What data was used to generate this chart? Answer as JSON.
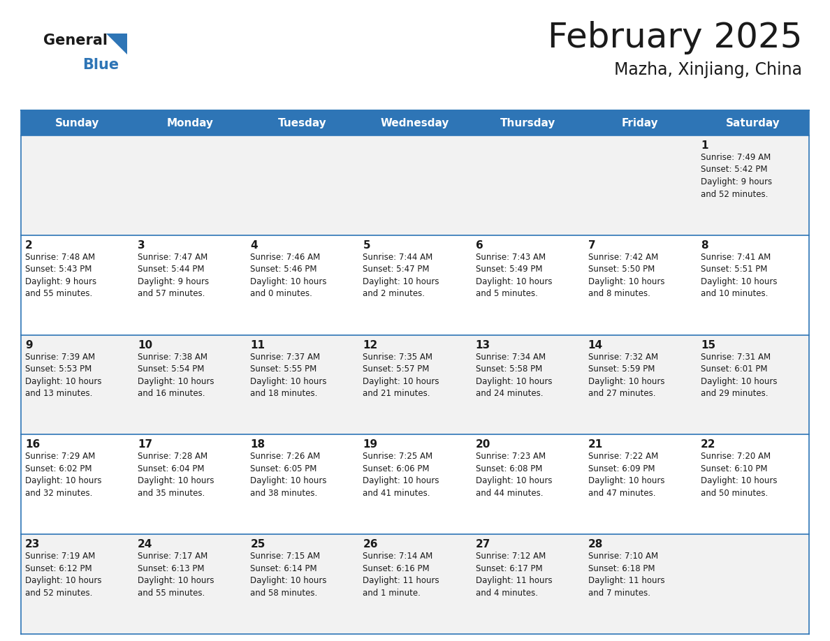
{
  "title": "February 2025",
  "subtitle": "Mazha, Xinjiang, China",
  "header_color": "#2E75B6",
  "header_text_color": "#FFFFFF",
  "bg_color_odd": "#F2F2F2",
  "bg_color_even": "#FFFFFF",
  "bg_color_white": "#FFFFFF",
  "border_color": "#2E75B6",
  "text_color": "#1a1a1a",
  "day_headers": [
    "Sunday",
    "Monday",
    "Tuesday",
    "Wednesday",
    "Thursday",
    "Friday",
    "Saturday"
  ],
  "weeks": [
    [
      {
        "day": "",
        "info": ""
      },
      {
        "day": "",
        "info": ""
      },
      {
        "day": "",
        "info": ""
      },
      {
        "day": "",
        "info": ""
      },
      {
        "day": "",
        "info": ""
      },
      {
        "day": "",
        "info": ""
      },
      {
        "day": "1",
        "info": "Sunrise: 7:49 AM\nSunset: 5:42 PM\nDaylight: 9 hours\nand 52 minutes."
      }
    ],
    [
      {
        "day": "2",
        "info": "Sunrise: 7:48 AM\nSunset: 5:43 PM\nDaylight: 9 hours\nand 55 minutes."
      },
      {
        "day": "3",
        "info": "Sunrise: 7:47 AM\nSunset: 5:44 PM\nDaylight: 9 hours\nand 57 minutes."
      },
      {
        "day": "4",
        "info": "Sunrise: 7:46 AM\nSunset: 5:46 PM\nDaylight: 10 hours\nand 0 minutes."
      },
      {
        "day": "5",
        "info": "Sunrise: 7:44 AM\nSunset: 5:47 PM\nDaylight: 10 hours\nand 2 minutes."
      },
      {
        "day": "6",
        "info": "Sunrise: 7:43 AM\nSunset: 5:49 PM\nDaylight: 10 hours\nand 5 minutes."
      },
      {
        "day": "7",
        "info": "Sunrise: 7:42 AM\nSunset: 5:50 PM\nDaylight: 10 hours\nand 8 minutes."
      },
      {
        "day": "8",
        "info": "Sunrise: 7:41 AM\nSunset: 5:51 PM\nDaylight: 10 hours\nand 10 minutes."
      }
    ],
    [
      {
        "day": "9",
        "info": "Sunrise: 7:39 AM\nSunset: 5:53 PM\nDaylight: 10 hours\nand 13 minutes."
      },
      {
        "day": "10",
        "info": "Sunrise: 7:38 AM\nSunset: 5:54 PM\nDaylight: 10 hours\nand 16 minutes."
      },
      {
        "day": "11",
        "info": "Sunrise: 7:37 AM\nSunset: 5:55 PM\nDaylight: 10 hours\nand 18 minutes."
      },
      {
        "day": "12",
        "info": "Sunrise: 7:35 AM\nSunset: 5:57 PM\nDaylight: 10 hours\nand 21 minutes."
      },
      {
        "day": "13",
        "info": "Sunrise: 7:34 AM\nSunset: 5:58 PM\nDaylight: 10 hours\nand 24 minutes."
      },
      {
        "day": "14",
        "info": "Sunrise: 7:32 AM\nSunset: 5:59 PM\nDaylight: 10 hours\nand 27 minutes."
      },
      {
        "day": "15",
        "info": "Sunrise: 7:31 AM\nSunset: 6:01 PM\nDaylight: 10 hours\nand 29 minutes."
      }
    ],
    [
      {
        "day": "16",
        "info": "Sunrise: 7:29 AM\nSunset: 6:02 PM\nDaylight: 10 hours\nand 32 minutes."
      },
      {
        "day": "17",
        "info": "Sunrise: 7:28 AM\nSunset: 6:04 PM\nDaylight: 10 hours\nand 35 minutes."
      },
      {
        "day": "18",
        "info": "Sunrise: 7:26 AM\nSunset: 6:05 PM\nDaylight: 10 hours\nand 38 minutes."
      },
      {
        "day": "19",
        "info": "Sunrise: 7:25 AM\nSunset: 6:06 PM\nDaylight: 10 hours\nand 41 minutes."
      },
      {
        "day": "20",
        "info": "Sunrise: 7:23 AM\nSunset: 6:08 PM\nDaylight: 10 hours\nand 44 minutes."
      },
      {
        "day": "21",
        "info": "Sunrise: 7:22 AM\nSunset: 6:09 PM\nDaylight: 10 hours\nand 47 minutes."
      },
      {
        "day": "22",
        "info": "Sunrise: 7:20 AM\nSunset: 6:10 PM\nDaylight: 10 hours\nand 50 minutes."
      }
    ],
    [
      {
        "day": "23",
        "info": "Sunrise: 7:19 AM\nSunset: 6:12 PM\nDaylight: 10 hours\nand 52 minutes."
      },
      {
        "day": "24",
        "info": "Sunrise: 7:17 AM\nSunset: 6:13 PM\nDaylight: 10 hours\nand 55 minutes."
      },
      {
        "day": "25",
        "info": "Sunrise: 7:15 AM\nSunset: 6:14 PM\nDaylight: 10 hours\nand 58 minutes."
      },
      {
        "day": "26",
        "info": "Sunrise: 7:14 AM\nSunset: 6:16 PM\nDaylight: 11 hours\nand 1 minute."
      },
      {
        "day": "27",
        "info": "Sunrise: 7:12 AM\nSunset: 6:17 PM\nDaylight: 11 hours\nand 4 minutes."
      },
      {
        "day": "28",
        "info": "Sunrise: 7:10 AM\nSunset: 6:18 PM\nDaylight: 11 hours\nand 7 minutes."
      },
      {
        "day": "",
        "info": ""
      }
    ]
  ],
  "logo_text_general": "General",
  "logo_text_blue": "Blue",
  "title_fontsize": 36,
  "subtitle_fontsize": 17,
  "header_fontsize": 11,
  "day_num_fontsize": 11,
  "info_fontsize": 8.5
}
